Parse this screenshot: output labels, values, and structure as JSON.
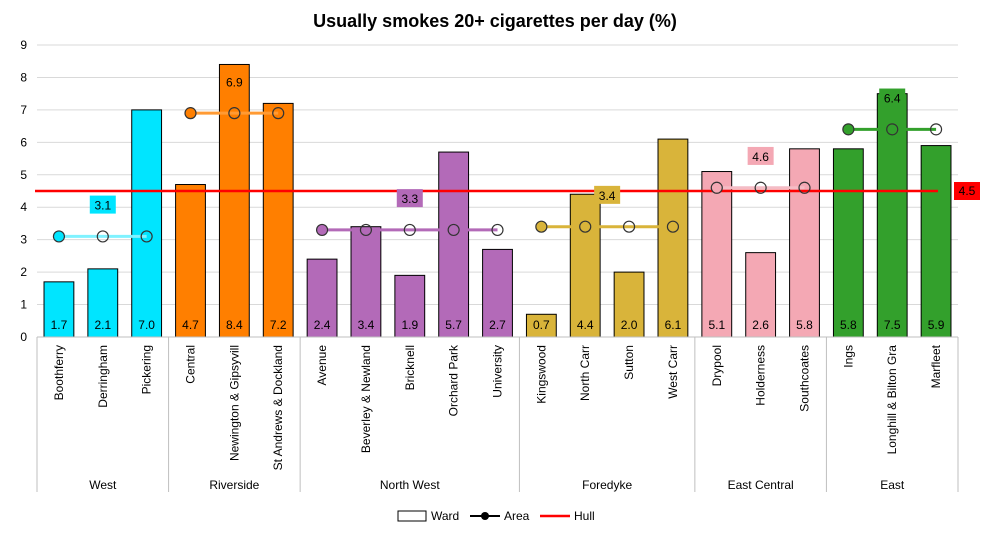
{
  "chart_data": {
    "type": "bar",
    "title": "Usually smokes 20+ cigarettes per day (%)",
    "ylim": [
      0,
      9
    ],
    "yticks": [
      0,
      1,
      2,
      3,
      4,
      5,
      6,
      7,
      8,
      9
    ],
    "grid": true,
    "legend_position": "bottom",
    "legend": [
      "Ward",
      "Area",
      "Hull"
    ],
    "hull": {
      "name": "Hull",
      "value": 4.5,
      "label": "4.5",
      "color": "#ff0000",
      "label_bg": "#ff0000"
    },
    "groups": [
      {
        "name": "West",
        "color": "#00e5ff",
        "area_value": 3.1,
        "area_label": "3.1",
        "line_color": "#80f2ff",
        "wards": [
          {
            "name": "Boothferry",
            "value": 1.7,
            "label": "1.7"
          },
          {
            "name": "Derringham",
            "value": 2.1,
            "label": "2.1"
          },
          {
            "name": "Pickering",
            "value": 7.0,
            "label": "7.0"
          }
        ]
      },
      {
        "name": "Riverside",
        "color": "#ff7f00",
        "area_value": 6.9,
        "area_label": "6.9",
        "line_color": "#ff9a33",
        "wards": [
          {
            "name": "Central",
            "value": 4.7,
            "label": "4.7"
          },
          {
            "name": "Newington & Gipsyvill",
            "value": 8.4,
            "label": "8.4"
          },
          {
            "name": "St Andrews & Dockland",
            "value": 7.2,
            "label": "7.2"
          }
        ]
      },
      {
        "name": "North West",
        "color": "#b36ab8",
        "area_value": 3.3,
        "area_label": "3.3",
        "line_color": "#b36ab8",
        "wards": [
          {
            "name": "Avenue",
            "value": 2.4,
            "label": "2.4"
          },
          {
            "name": "Beverley & Newland",
            "value": 3.4,
            "label": "3.4"
          },
          {
            "name": "Bricknell",
            "value": 1.9,
            "label": "1.9"
          },
          {
            "name": "Orchard Park",
            "value": 5.7,
            "label": "5.7"
          },
          {
            "name": "University",
            "value": 2.7,
            "label": "2.7"
          }
        ]
      },
      {
        "name": "Foredyke",
        "color": "#d9b43a",
        "area_value": 3.4,
        "area_label": "3.4",
        "line_color": "#d9b43a",
        "wards": [
          {
            "name": "Kingswood",
            "value": 0.7,
            "label": "0.7"
          },
          {
            "name": "North Carr",
            "value": 4.4,
            "label": "4.4"
          },
          {
            "name": "Sutton",
            "value": 2.0,
            "label": "2.0"
          },
          {
            "name": "West Carr",
            "value": 6.1,
            "label": "6.1"
          }
        ]
      },
      {
        "name": "East Central",
        "color": "#f4a8b4",
        "area_value": 4.6,
        "area_label": "4.6",
        "line_color": "#f4bcc5",
        "wards": [
          {
            "name": "Drypool",
            "value": 5.1,
            "label": "5.1"
          },
          {
            "name": "Holderness",
            "value": 2.6,
            "label": "2.6"
          },
          {
            "name": "Southcoates",
            "value": 5.8,
            "label": "5.8"
          }
        ]
      },
      {
        "name": "East",
        "color": "#33a02c",
        "area_value": 6.4,
        "area_label": "6.4",
        "line_color": "#33a02c",
        "wards": [
          {
            "name": "Ings",
            "value": 5.8,
            "label": "5.8"
          },
          {
            "name": "Longhill & Bilton Gra",
            "value": 7.5,
            "label": "7.5"
          },
          {
            "name": "Marfleet",
            "value": 5.9,
            "label": "5.9"
          }
        ]
      }
    ]
  }
}
